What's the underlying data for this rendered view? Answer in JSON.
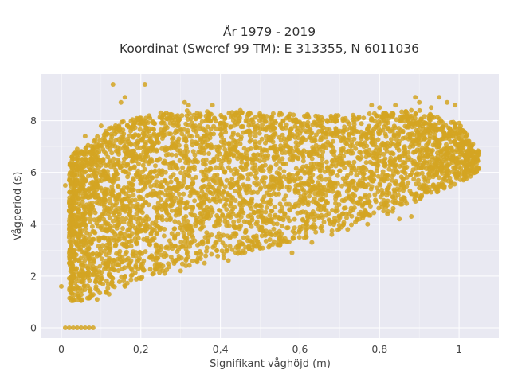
{
  "colors": {
    "plot_background": "#e9e9f2",
    "marker": "#d4a522",
    "grid": "#ffffff"
  },
  "chart_data": {
    "type": "scatter",
    "title_lines": [
      "År 1979 - 2019",
      "Koordinat (Sweref 99 TM): E 313355, N 6011036"
    ],
    "xlabel": "Signifikant våghöjd (m)",
    "ylabel": "Vågperiod (s)",
    "xlim": [
      -0.05,
      1.1
    ],
    "ylim": [
      -0.4,
      9.8
    ],
    "x_ticks": [
      0,
      0.2,
      0.4,
      0.6,
      0.8,
      1
    ],
    "x_tick_labels": [
      "0",
      "0,2",
      "0,4",
      "0,6",
      "0,8",
      "1"
    ],
    "y_ticks": [
      0,
      2,
      4,
      6,
      8
    ],
    "y_tick_labels": [
      "0",
      "2",
      "4",
      "6",
      "8"
    ],
    "grid": true,
    "legend": "none",
    "point_density": "very dense (tens of thousands of points); sample shown",
    "envelope": {
      "lower_boundary": [
        [
          0.02,
          1.0
        ],
        [
          0.1,
          1.2
        ],
        [
          0.2,
          1.9
        ],
        [
          0.3,
          2.3
        ],
        [
          0.4,
          2.65
        ],
        [
          0.5,
          3.0
        ],
        [
          0.6,
          3.4
        ],
        [
          0.7,
          3.8
        ],
        [
          0.8,
          4.3
        ],
        [
          0.9,
          4.9
        ],
        [
          1.0,
          5.6
        ],
        [
          1.05,
          6.0
        ]
      ],
      "upper_boundary": [
        [
          0.02,
          6.6
        ],
        [
          0.08,
          7.3
        ],
        [
          0.15,
          8.0
        ],
        [
          0.3,
          8.4
        ],
        [
          0.5,
          8.3
        ],
        [
          0.7,
          8.2
        ],
        [
          0.9,
          8.4
        ],
        [
          1.0,
          7.9
        ],
        [
          1.05,
          6.8
        ]
      ]
    },
    "points": [
      [
        0.01,
        0.0
      ],
      [
        0.02,
        0.0
      ],
      [
        0.03,
        0.0
      ],
      [
        0.04,
        0.0
      ],
      [
        0.05,
        0.0
      ],
      [
        0.06,
        0.0
      ],
      [
        0.07,
        0.0
      ],
      [
        0.08,
        0.0
      ],
      [
        0.0,
        1.6
      ],
      [
        0.01,
        5.5
      ],
      [
        0.02,
        4.5
      ],
      [
        0.13,
        9.4
      ],
      [
        0.21,
        9.4
      ],
      [
        0.15,
        8.7
      ],
      [
        0.16,
        8.9
      ],
      [
        0.31,
        8.7
      ],
      [
        0.32,
        8.6
      ],
      [
        0.38,
        8.6
      ],
      [
        0.45,
        8.4
      ],
      [
        0.55,
        8.3
      ],
      [
        0.62,
        8.2
      ],
      [
        0.69,
        8.2
      ],
      [
        0.76,
        8.1
      ],
      [
        0.78,
        8.6
      ],
      [
        0.8,
        8.5
      ],
      [
        0.84,
        8.6
      ],
      [
        0.88,
        8.4
      ],
      [
        0.89,
        8.9
      ],
      [
        0.9,
        8.7
      ],
      [
        0.93,
        8.5
      ],
      [
        0.95,
        8.9
      ],
      [
        0.97,
        8.7
      ],
      [
        0.99,
        8.6
      ],
      [
        1.0,
        7.9
      ],
      [
        1.02,
        7.1
      ],
      [
        1.05,
        6.8
      ],
      [
        1.03,
        6.7
      ],
      [
        1.0,
        6.4
      ],
      [
        0.97,
        6.2
      ],
      [
        0.95,
        5.8
      ],
      [
        0.9,
        5.4
      ],
      [
        0.88,
        4.3
      ],
      [
        0.85,
        4.2
      ],
      [
        0.82,
        4.4
      ],
      [
        0.77,
        4.0
      ],
      [
        0.72,
        3.8
      ],
      [
        0.68,
        3.6
      ],
      [
        0.63,
        3.3
      ],
      [
        0.58,
        2.9
      ],
      [
        0.55,
        3.2
      ],
      [
        0.48,
        3.0
      ],
      [
        0.42,
        2.6
      ],
      [
        0.36,
        2.5
      ],
      [
        0.3,
        2.2
      ],
      [
        0.26,
        2.1
      ],
      [
        0.2,
        1.9
      ],
      [
        0.16,
        1.6
      ],
      [
        0.12,
        1.3
      ],
      [
        0.09,
        1.1
      ],
      [
        0.05,
        1.05
      ],
      [
        0.03,
        1.5
      ],
      [
        0.02,
        2.5
      ],
      [
        0.02,
        3.5
      ],
      [
        0.8,
        7.5
      ],
      [
        0.85,
        7.2
      ],
      [
        0.9,
        7.4
      ],
      [
        0.92,
        6.9
      ],
      [
        0.95,
        7.0
      ],
      [
        0.7,
        7.6
      ],
      [
        0.65,
        7.8
      ],
      [
        0.6,
        7.5
      ],
      [
        0.5,
        7.7
      ],
      [
        0.4,
        7.9
      ],
      [
        0.35,
        8.2
      ],
      [
        0.25,
        8.3
      ],
      [
        0.2,
        8.1
      ],
      [
        0.1,
        7.8
      ],
      [
        0.06,
        7.4
      ],
      [
        0.04,
        6.9
      ]
    ]
  }
}
